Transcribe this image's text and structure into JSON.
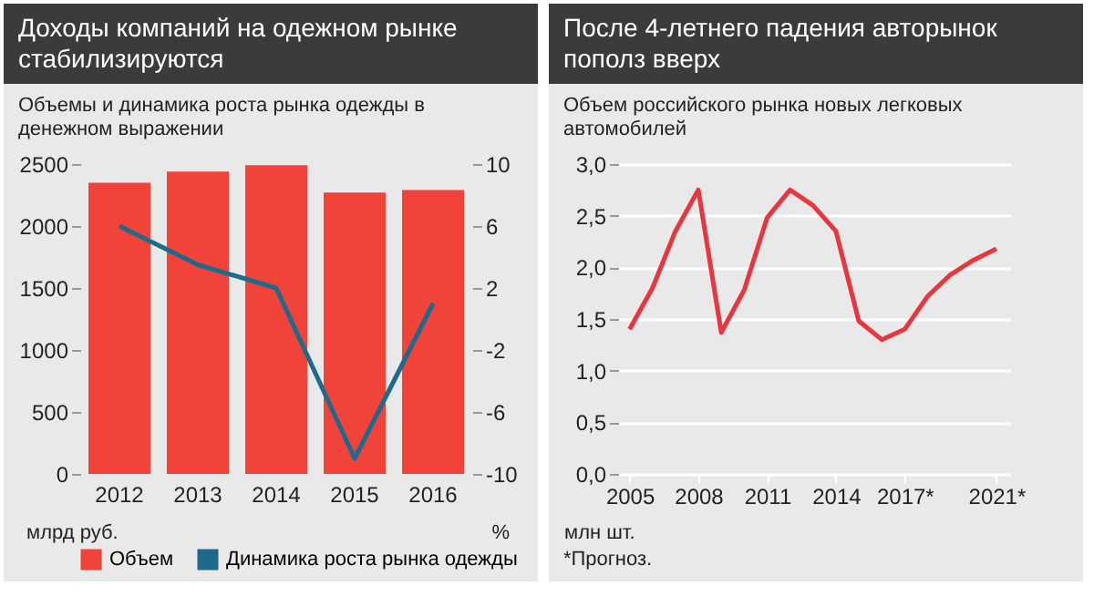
{
  "chart_data": [
    {
      "type": "bar",
      "title": "Доходы компаний на одежном рынке стабилизируются",
      "subtitle": "Объемы и динамика роста рынка одежды в денежном выражении",
      "ylabel": "млрд руб.",
      "y2label": "%",
      "categories": [
        "2012",
        "2013",
        "2014",
        "2015",
        "2016"
      ],
      "series": [
        {
          "name": "Объем",
          "color": "#f2433b",
          "values": [
            2350,
            2440,
            2490,
            2270,
            2290
          ]
        },
        {
          "name": "Динамика роста рынка одежды",
          "type": "line",
          "axis": "y2",
          "color": "#1e6a8a",
          "values": [
            6,
            3.5,
            2,
            -9,
            1
          ]
        }
      ],
      "ylim": [
        0,
        2500
      ],
      "yticks": [
        0,
        500,
        1000,
        1500,
        2000,
        2500
      ],
      "y2lim": [
        -10,
        10
      ],
      "y2ticks": [
        -10,
        -6,
        -2,
        2,
        6,
        10
      ],
      "legend": "bottom",
      "grid": false
    },
    {
      "type": "line",
      "title": "После 4-летнего падения авторынок пополз вверх",
      "subtitle": "Объем российского рынка новых легковых автомобилей",
      "ylabel": "млн шт.",
      "annotations": [
        "*Прогноз."
      ],
      "x": [
        2005,
        2006,
        2007,
        2008,
        2009,
        2010,
        2011,
        2012,
        2013,
        2014,
        2015,
        2016,
        2017,
        2018,
        2019,
        2020,
        2021
      ],
      "series": [
        {
          "color": "#e8363f",
          "values": [
            1.4,
            1.8,
            2.35,
            2.75,
            1.37,
            1.78,
            2.48,
            2.75,
            2.6,
            2.35,
            1.48,
            1.3,
            1.4,
            1.72,
            1.93,
            2.07,
            2.18
          ]
        }
      ],
      "xlim": [
        2004.5,
        2021.6
      ],
      "xticks": [
        2005,
        2008,
        2011,
        2014,
        {
          "value": 2017,
          "label": "2017*"
        },
        {
          "value": 2021,
          "label": "2021*"
        }
      ],
      "ylim": [
        0,
        3
      ],
      "yticks": [
        {
          "value": 0,
          "label": "0,0"
        },
        {
          "value": 0.5,
          "label": "0,5"
        },
        {
          "value": 1,
          "label": "1,0"
        },
        {
          "value": 1.5,
          "label": "1,5"
        },
        {
          "value": 2,
          "label": "2,0"
        },
        {
          "value": 2.5,
          "label": "2,5"
        },
        {
          "value": 3,
          "label": "3,0"
        }
      ],
      "grid": "y",
      "line_style": "solid",
      "marker": "none"
    }
  ]
}
